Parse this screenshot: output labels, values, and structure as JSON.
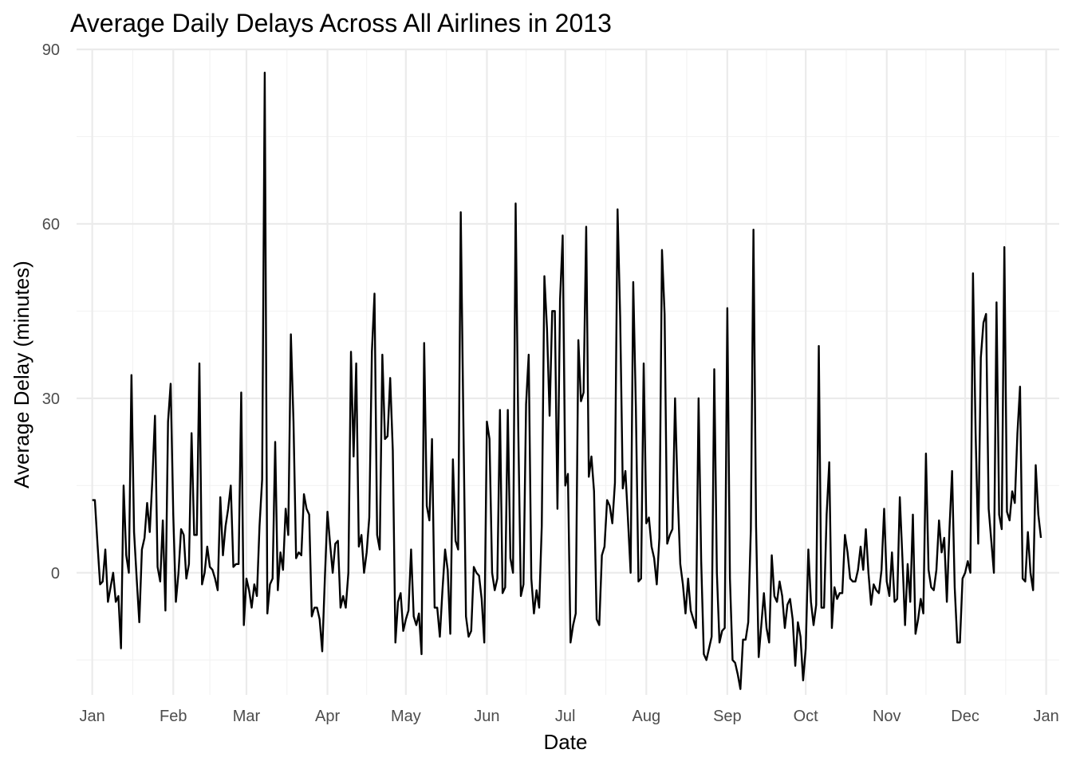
{
  "chart_data": {
    "type": "line",
    "title": "Average Daily Delays Across All Airlines in 2013",
    "xlabel": "Date",
    "ylabel": "Average Delay (minutes)",
    "x_type": "date",
    "xlim": [
      "2012-12-26",
      "2014-01-06"
    ],
    "ylim": [
      -21,
      90
    ],
    "x_ticks": [
      {
        "date": "2013-01-01",
        "label": "Jan"
      },
      {
        "date": "2013-02-01",
        "label": "Feb"
      },
      {
        "date": "2013-03-01",
        "label": "Mar"
      },
      {
        "date": "2013-04-01",
        "label": "Apr"
      },
      {
        "date": "2013-05-01",
        "label": "May"
      },
      {
        "date": "2013-06-01",
        "label": "Jun"
      },
      {
        "date": "2013-07-01",
        "label": "Jul"
      },
      {
        "date": "2013-08-01",
        "label": "Aug"
      },
      {
        "date": "2013-09-01",
        "label": "Sep"
      },
      {
        "date": "2013-10-01",
        "label": "Oct"
      },
      {
        "date": "2013-11-01",
        "label": "Nov"
      },
      {
        "date": "2013-12-01",
        "label": "Dec"
      },
      {
        "date": "2014-01-01",
        "label": "Jan"
      }
    ],
    "y_ticks": [
      0,
      30,
      60,
      90
    ],
    "grid": true,
    "legend": "none",
    "line_color": "#000000",
    "series": [
      {
        "x_start": "2013-01-01",
        "x_end": "2013-12-31",
        "step_days": 1,
        "values": [
          12.5,
          12.5,
          5,
          -2,
          -1.5,
          4,
          -5,
          -2.5,
          0,
          -5,
          -4,
          -13,
          15,
          3,
          0,
          34,
          7,
          -1,
          -8.5,
          4,
          6,
          12,
          7,
          16,
          27,
          1,
          -1.5,
          9,
          -6.5,
          26,
          32.5,
          10,
          -5,
          0,
          7.5,
          6.5,
          -1,
          1.5,
          24,
          6.5,
          6.5,
          36,
          -2,
          0,
          4.5,
          1,
          0.5,
          -1,
          -3,
          13,
          3,
          8,
          11,
          15,
          1,
          1.5,
          1.5,
          31,
          -9,
          -1,
          -3,
          -6,
          -2,
          -4,
          8,
          16,
          86,
          -7,
          -2,
          -1,
          22.5,
          -3,
          3.5,
          0.5,
          11,
          6.5,
          41,
          26,
          2.5,
          3.5,
          3,
          13.5,
          11,
          10,
          -7.5,
          -6,
          -6,
          -8,
          -13.5,
          -1,
          10.5,
          5,
          0,
          5,
          5.5,
          -6,
          -4,
          -6,
          0,
          38,
          20,
          36,
          4.5,
          6.5,
          0,
          3.5,
          9.5,
          38,
          48,
          6.5,
          4,
          37.5,
          23,
          23.5,
          33.5,
          21,
          -12,
          -5,
          -3.5,
          -10,
          -8,
          -6.5,
          4,
          -7.5,
          -9,
          -7,
          -14,
          39.5,
          11.5,
          9,
          23,
          -6,
          -6,
          -11,
          -3,
          4,
          0.5,
          -10.5,
          19.5,
          5.5,
          4,
          62,
          26,
          -7.5,
          -11,
          -10,
          1,
          0,
          -0.5,
          -4.5,
          -12,
          26,
          23,
          0,
          -3,
          -1,
          28,
          -3.5,
          -2.5,
          28,
          2.5,
          0,
          63.5,
          25,
          -4,
          -2,
          29,
          37.5,
          -1,
          -7,
          -3,
          -6,
          8,
          51,
          42,
          27,
          45,
          45,
          11,
          47,
          58,
          15,
          17,
          -12,
          -9,
          -7,
          40,
          29.5,
          31,
          59.5,
          16.5,
          20,
          14,
          -8,
          -9,
          3,
          4.5,
          12.5,
          11.5,
          8.5,
          15.5,
          62.5,
          44,
          14.5,
          17.5,
          9,
          0,
          50,
          28.5,
          -1.5,
          -1,
          36,
          8.5,
          9.5,
          4.5,
          2.5,
          -2,
          6,
          55.5,
          44.5,
          5,
          6.5,
          7.5,
          30,
          13.5,
          1.5,
          -2,
          -7,
          -1,
          -6.5,
          -8,
          -9.5,
          30,
          2,
          -14,
          -15,
          -13,
          -11,
          35,
          0,
          -12,
          -10,
          -9.5,
          45.5,
          -1,
          -15,
          -15.5,
          -17.5,
          -20,
          -11.5,
          -11.5,
          -8.5,
          7.5,
          59,
          8,
          -14.5,
          -9,
          -3.5,
          -9.5,
          -12,
          3,
          -4,
          -5,
          -1.5,
          -4,
          -9.5,
          -5.5,
          -4.5,
          -8,
          -16,
          -8.5,
          -11,
          -18.5,
          -13,
          4,
          -5,
          -9,
          -5.5,
          39,
          -6,
          -6,
          10,
          19,
          -9.5,
          -2.5,
          -4.5,
          -3.5,
          -3.5,
          6.5,
          3.5,
          -1,
          -1.5,
          -1.5,
          0.5,
          4.5,
          0.5,
          7.5,
          0,
          -5.5,
          -2,
          -3,
          -3.5,
          0.5,
          11,
          -1.5,
          -4,
          3.5,
          -5,
          -4.5,
          13,
          2.5,
          -9,
          1.5,
          -5,
          10,
          -10.5,
          -8,
          -4.5,
          -7,
          20.5,
          0.5,
          -2.5,
          -3,
          0.5,
          9,
          3.5,
          6,
          -5,
          7.5,
          17.5,
          -2.5,
          -12,
          -12,
          -1,
          0,
          2,
          0,
          51.5,
          24,
          5,
          37,
          43,
          44.5,
          11,
          5.5,
          0,
          46.5,
          10,
          7.5,
          56,
          10.5,
          9,
          14,
          12,
          24,
          32,
          -1,
          -1.5,
          7,
          0,
          -3,
          18.5,
          10,
          6
        ]
      }
    ]
  }
}
